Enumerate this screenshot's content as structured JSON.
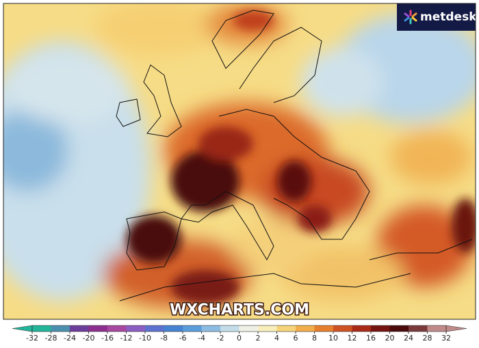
{
  "watermark": "WXCHARTS.COM",
  "logo": "metdesk",
  "colorbar": {
    "ticks": [
      -32,
      -28,
      -24,
      -20,
      -16,
      -12,
      -10,
      -8,
      -6,
      -4,
      -2,
      0,
      2,
      4,
      6,
      8,
      10,
      12,
      16,
      20,
      24,
      28,
      32
    ],
    "colors": [
      "#22b59a",
      "#4b8fae",
      "#6c3e9c",
      "#8c2f8e",
      "#a8479f",
      "#8a5ec2",
      "#5d72d0",
      "#4683d2",
      "#5b9ddb",
      "#8dbce3",
      "#c4dcea",
      "#eef0e6",
      "#f8eebb",
      "#f5d479",
      "#f1ae4b",
      "#e6802f",
      "#cf5322",
      "#aa2a18",
      "#751410",
      "#4a0a0a",
      "#7a3a3a",
      "#c08a8a"
    ]
  }
}
